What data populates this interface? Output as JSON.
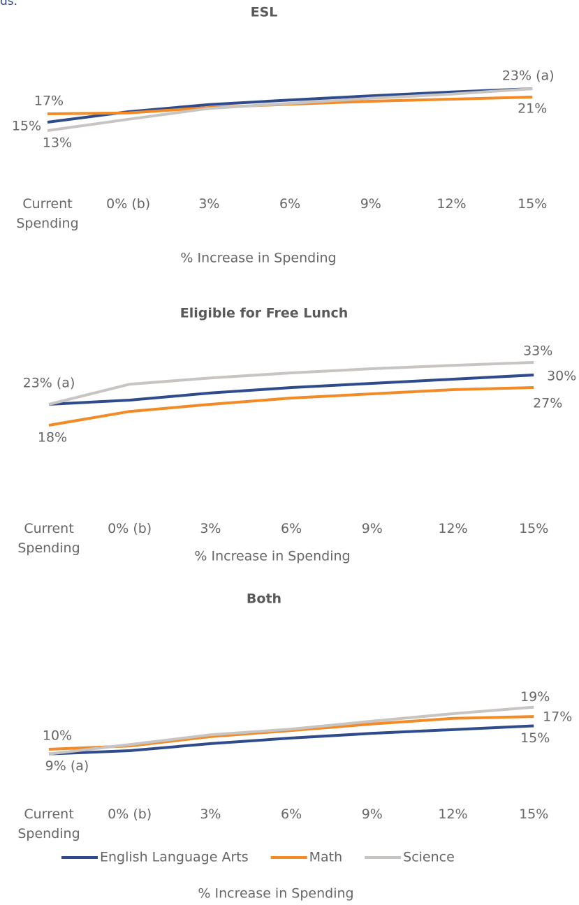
{
  "fragment": "ds.",
  "chart_data": [
    {
      "type": "line",
      "title": "ESL",
      "xlabel": "% Increase in Spending",
      "categories": [
        "Current Spending",
        "0% (b)",
        "3%",
        "6%",
        "9%",
        "12%",
        "15%"
      ],
      "ylim": [
        0,
        38
      ],
      "legend": false,
      "series": [
        {
          "name": "English Language Arts",
          "color": "#2f4b8c",
          "values": [
            15,
            17.5,
            19.2,
            20.3,
            21.3,
            22.2,
            23
          ],
          "value_labels": [
            "15%",
            null,
            null,
            null,
            null,
            null,
            null
          ]
        },
        {
          "name": "Math",
          "color": "#f28a26",
          "values": [
            17,
            17.2,
            18.5,
            19.3,
            20,
            20.5,
            21
          ],
          "value_labels": [
            "17%",
            null,
            null,
            null,
            null,
            null,
            "21%"
          ]
        },
        {
          "name": "Science",
          "color": "#c8c4c2",
          "values": [
            13,
            15.7,
            18.3,
            19.5,
            20.7,
            21.7,
            23
          ],
          "value_labels": [
            "13%",
            null,
            null,
            null,
            null,
            null,
            "23% (a)"
          ]
        }
      ]
    },
    {
      "type": "line",
      "title": "Eligible for Free Lunch",
      "xlabel": "% Increase in Spending",
      "categories": [
        "Current Spending",
        "0% (b)",
        "3%",
        "6%",
        "9%",
        "12%",
        "15%"
      ],
      "ylim": [
        0,
        40
      ],
      "legend": false,
      "series": [
        {
          "name": "English Language Arts",
          "color": "#2f4b8c",
          "values": [
            23,
            24,
            25.7,
            27,
            28,
            29,
            30
          ],
          "value_labels": [
            "23% (a)",
            null,
            null,
            null,
            null,
            null,
            "30%"
          ]
        },
        {
          "name": "Math",
          "color": "#f28a26",
          "values": [
            18,
            21.3,
            23,
            24.5,
            25.5,
            26.5,
            27
          ],
          "value_labels": [
            "18%",
            null,
            null,
            null,
            null,
            null,
            "27%"
          ]
        },
        {
          "name": "Science",
          "color": "#c8c4c2",
          "values": [
            23,
            27.8,
            29.3,
            30.5,
            31.5,
            32.3,
            33
          ],
          "value_labels": [
            null,
            null,
            null,
            null,
            null,
            null,
            "33%"
          ]
        }
      ]
    },
    {
      "type": "line",
      "title": "Both",
      "xlabel": "% Increase in Spending",
      "categories": [
        "Current Spending",
        "0% (b)",
        "3%",
        "6%",
        "9%",
        "12%",
        "15%"
      ],
      "ylim": [
        0,
        37
      ],
      "legend": true,
      "series": [
        {
          "name": "English Language Arts",
          "color": "#2f4b8c",
          "values": [
            9,
            9.7,
            11.2,
            12.4,
            13.4,
            14.2,
            15
          ],
          "value_labels": [
            "9% (a)",
            null,
            null,
            null,
            null,
            null,
            "15%"
          ]
        },
        {
          "name": "Math",
          "color": "#f28a26",
          "values": [
            10,
            10.7,
            12.7,
            14,
            15.4,
            16.6,
            17
          ],
          "value_labels": [
            "10%",
            null,
            null,
            null,
            null,
            null,
            "17%"
          ]
        },
        {
          "name": "Science",
          "color": "#c8c4c2",
          "values": [
            9,
            11,
            13.1,
            14.3,
            16,
            17.6,
            19
          ],
          "value_labels": [
            null,
            null,
            null,
            null,
            null,
            null,
            "19%"
          ]
        }
      ]
    }
  ]
}
